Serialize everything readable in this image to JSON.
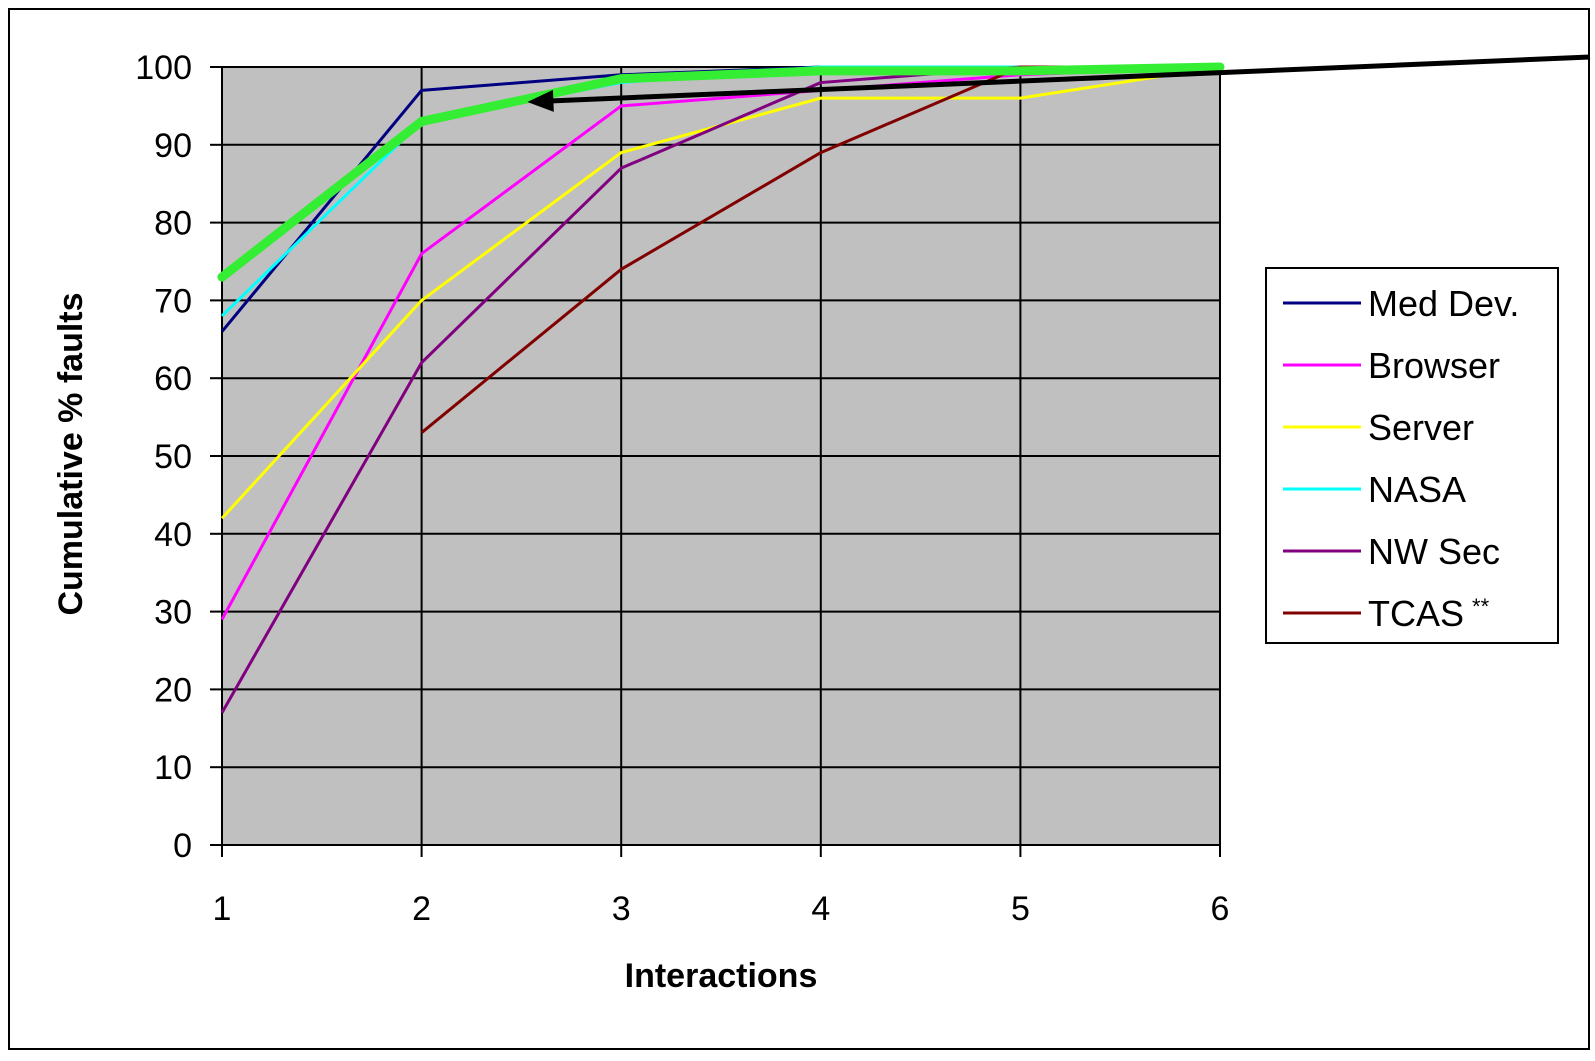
{
  "chart_data": {
    "type": "line",
    "title": "",
    "xlabel": "Interactions",
    "ylabel": "Cumulative % faults",
    "x": [
      1,
      2,
      3,
      4,
      5,
      6
    ],
    "x_ticks": [
      "1",
      "2",
      "3",
      "4",
      "5",
      "6"
    ],
    "y_ticks": [
      "0",
      "10",
      "20",
      "30",
      "40",
      "50",
      "60",
      "70",
      "80",
      "90",
      "100"
    ],
    "xlim": [
      1,
      6
    ],
    "ylim": [
      0,
      100
    ],
    "grid": true,
    "plot_background": "#c0c0c0",
    "legend_position": "right",
    "series": [
      {
        "name": "Med Dev.",
        "color": "#000080",
        "values": [
          66,
          97,
          99,
          100,
          100,
          100
        ]
      },
      {
        "name": "Browser",
        "color": "#ff00ff",
        "values": [
          29,
          76,
          95,
          97,
          99,
          100
        ]
      },
      {
        "name": "Server",
        "color": "#ffff00",
        "values": [
          42,
          70,
          89,
          96,
          96,
          100
        ]
      },
      {
        "name": "NASA",
        "color": "#00ffff",
        "values": [
          68,
          93,
          98,
          100,
          100,
          100
        ]
      },
      {
        "name": "NW Sec",
        "color": "#800080",
        "values": [
          17,
          62,
          87,
          98,
          100,
          100
        ]
      },
      {
        "name": "TCAS",
        "name_suffix": "**",
        "color": "#800000",
        "values": [
          null,
          53,
          74,
          89,
          100,
          100
        ]
      }
    ],
    "highlight_series": {
      "color": "#33ee33",
      "values": [
        73,
        93,
        98.5,
        99.5,
        99.5,
        100
      ]
    },
    "annotation": {
      "type": "arrow",
      "target": {
        "x": 2.53,
        "y": 95.5
      },
      "source": "off-chart right"
    }
  }
}
